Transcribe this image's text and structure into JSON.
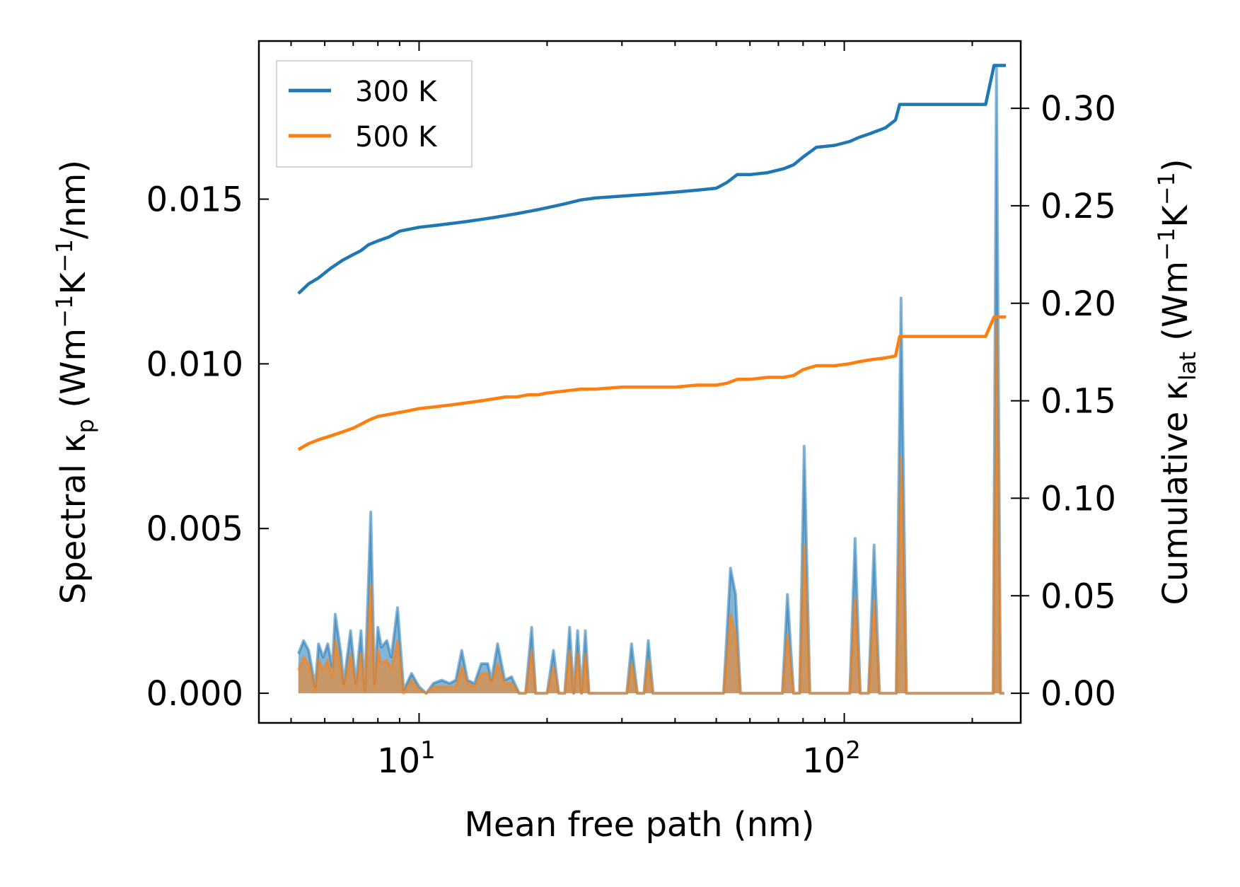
{
  "chart_data": {
    "type": "line",
    "title": "",
    "xlabel": "Mean free path (nm)",
    "ylabel_left": "Spectral κp (Wm−1K−1/nm)",
    "ylabel_right": "Cumulative κlat (Wm−1K−1)",
    "xscale": "log",
    "xlim": [
      4.2,
      260
    ],
    "ylim_left": [
      -0.0009,
      0.0198
    ],
    "ylim_right": [
      -0.0152,
      0.3345
    ],
    "x_ticks": [
      {
        "value": 10,
        "base": "10",
        "exp": "1"
      },
      {
        "value": 100,
        "base": "10",
        "exp": "2"
      }
    ],
    "y_left_ticks": [
      {
        "value": 0.0,
        "label": "0.000"
      },
      {
        "value": 0.005,
        "label": "0.005"
      },
      {
        "value": 0.01,
        "label": "0.010"
      },
      {
        "value": 0.015,
        "label": "0.015"
      }
    ],
    "y_right_ticks": [
      {
        "value": 0.0,
        "label": "0.00"
      },
      {
        "value": 0.05,
        "label": "0.05"
      },
      {
        "value": 0.1,
        "label": "0.10"
      },
      {
        "value": 0.15,
        "label": "0.15"
      },
      {
        "value": 0.2,
        "label": "0.20"
      },
      {
        "value": 0.25,
        "label": "0.25"
      },
      {
        "value": 0.3,
        "label": "0.30"
      }
    ],
    "legend": {
      "location": "top-left",
      "entries": [
        "300 K",
        "500 K"
      ]
    },
    "series": [
      {
        "name": "300 K",
        "color": "#1f77b4",
        "axis": "right",
        "kind": "cumulative",
        "x": [
          5.2,
          5.5,
          5.8,
          6.2,
          6.6,
          7.0,
          7.3,
          7.6,
          8.0,
          8.5,
          9.0,
          9.5,
          10.0,
          11.0,
          12.0,
          13.0,
          14.0,
          15.0,
          16.0,
          17.0,
          18.0,
          19.0,
          20.0,
          22.0,
          24.0,
          26.0,
          30.0,
          35.0,
          40.0,
          45.0,
          50.0,
          53.0,
          56.0,
          60.0,
          66.0,
          72.0,
          76.0,
          80.0,
          86.0,
          95.0,
          103.0,
          108.0,
          115.0,
          125.0,
          132.0,
          135.0,
          150.0,
          180.0,
          215.0,
          225.0,
          240.0
        ],
        "y": [
          0.205,
          0.21,
          0.213,
          0.218,
          0.222,
          0.225,
          0.227,
          0.23,
          0.232,
          0.234,
          0.237,
          0.238,
          0.239,
          0.24,
          0.241,
          0.242,
          0.243,
          0.244,
          0.245,
          0.246,
          0.247,
          0.248,
          0.249,
          0.251,
          0.253,
          0.254,
          0.255,
          0.256,
          0.257,
          0.258,
          0.259,
          0.262,
          0.266,
          0.266,
          0.267,
          0.269,
          0.271,
          0.275,
          0.28,
          0.281,
          0.283,
          0.285,
          0.287,
          0.29,
          0.294,
          0.302,
          0.302,
          0.302,
          0.302,
          0.322,
          0.322
        ]
      },
      {
        "name": "500 K",
        "color": "#ff7f0e",
        "axis": "right",
        "kind": "cumulative",
        "x": [
          5.2,
          5.5,
          5.8,
          6.2,
          6.6,
          7.0,
          7.3,
          7.6,
          8.0,
          8.5,
          9.0,
          9.5,
          10.0,
          11.0,
          12.0,
          13.0,
          14.0,
          15.0,
          16.0,
          17.0,
          18.0,
          19.0,
          20.0,
          22.0,
          24.0,
          26.0,
          30.0,
          35.0,
          40.0,
          45.0,
          50.0,
          53.0,
          56.0,
          60.0,
          66.0,
          72.0,
          76.0,
          80.0,
          86.0,
          95.0,
          103.0,
          108.0,
          115.0,
          125.0,
          132.0,
          135.0,
          150.0,
          180.0,
          215.0,
          225.0,
          240.0
        ],
        "y": [
          0.125,
          0.128,
          0.13,
          0.132,
          0.134,
          0.136,
          0.138,
          0.14,
          0.142,
          0.143,
          0.144,
          0.145,
          0.146,
          0.147,
          0.148,
          0.149,
          0.15,
          0.151,
          0.152,
          0.152,
          0.153,
          0.153,
          0.154,
          0.155,
          0.156,
          0.156,
          0.157,
          0.157,
          0.157,
          0.158,
          0.158,
          0.159,
          0.161,
          0.161,
          0.162,
          0.162,
          0.163,
          0.166,
          0.168,
          0.168,
          0.169,
          0.17,
          0.171,
          0.172,
          0.173,
          0.183,
          0.183,
          0.183,
          0.183,
          0.193,
          0.193
        ]
      },
      {
        "name": "300 K spectral",
        "color": "#1f77b4",
        "axis": "left",
        "kind": "spectral",
        "x": [
          5.2,
          5.35,
          5.5,
          5.7,
          5.8,
          5.95,
          6.1,
          6.25,
          6.35,
          6.55,
          6.65,
          6.9,
          7.1,
          7.3,
          7.45,
          7.7,
          7.85,
          8.0,
          8.15,
          8.4,
          8.6,
          8.9,
          9.2,
          9.6,
          10.0,
          10.4,
          10.8,
          11.3,
          11.8,
          12.2,
          12.6,
          13.0,
          13.5,
          14.0,
          14.5,
          14.8,
          15.3,
          15.9,
          16.5,
          17.2,
          17.8,
          18.4,
          18.8,
          20.0,
          20.7,
          21.3,
          22.0,
          22.6,
          23.1,
          23.6,
          24.1,
          24.6,
          25.1,
          25.6,
          27.0,
          29.0,
          30.8,
          31.6,
          32.6,
          33.8,
          34.6,
          35.5,
          40.0,
          50.0,
          52.0,
          54.0,
          55.5,
          57.0,
          60.0,
          68.0,
          71.5,
          73.5,
          76.0,
          78.5,
          80.5,
          83.0,
          88.0,
          103.0,
          106.0,
          109.0,
          114.0,
          117.5,
          121.0,
          128.0,
          132.5,
          136.0,
          140.0,
          216.0,
          224.0,
          228.0,
          233.0,
          238.0
        ],
        "y": [
          0.0012,
          0.0016,
          0.0013,
          0.0002,
          0.0015,
          0.0011,
          0.0015,
          0.0008,
          0.0024,
          0.0012,
          0.0003,
          0.0019,
          0.0003,
          0.0019,
          0.0001,
          0.0055,
          0.0003,
          0.002,
          0.0014,
          0.0016,
          0.0011,
          0.0026,
          0.0001,
          0.0006,
          0.0002,
          0.0,
          0.0003,
          0.0004,
          0.0003,
          0.0004,
          0.0013,
          0.0004,
          0.0003,
          0.0009,
          0.0009,
          0.0004,
          0.0015,
          0.0004,
          0.0005,
          0.0,
          0.0,
          0.002,
          0.0,
          0.0,
          0.0013,
          0.0,
          0.0,
          0.002,
          0.0,
          0.0019,
          0.0,
          0.0019,
          0.0,
          0.0,
          0.0,
          0.0,
          0.0,
          0.0015,
          0.0,
          0.0,
          0.0016,
          0.0,
          0.0,
          0.0,
          0.0,
          0.0038,
          0.003,
          0.0,
          0.0,
          0.0,
          0.0,
          0.003,
          0.0,
          0.0,
          0.0075,
          0.0,
          0.0,
          0.0,
          0.0047,
          0.0,
          0.0,
          0.0045,
          0.0,
          0.0,
          0.0,
          0.012,
          0.0,
          0.0,
          0.0,
          0.019,
          0.0,
          0.0
        ]
      },
      {
        "name": "500 K spectral",
        "color": "#ff7f0e",
        "axis": "left",
        "kind": "spectral",
        "x": [
          5.2,
          5.35,
          5.5,
          5.7,
          5.8,
          5.95,
          6.1,
          6.25,
          6.35,
          6.55,
          6.65,
          6.9,
          7.1,
          7.3,
          7.45,
          7.7,
          7.85,
          8.0,
          8.15,
          8.4,
          8.6,
          8.9,
          9.2,
          9.6,
          10.0,
          10.4,
          10.8,
          11.3,
          11.8,
          12.2,
          12.6,
          13.0,
          13.5,
          14.0,
          14.5,
          14.8,
          15.3,
          15.9,
          16.5,
          17.2,
          17.8,
          18.4,
          18.8,
          20.0,
          20.7,
          21.3,
          22.0,
          22.6,
          23.1,
          23.6,
          24.1,
          24.6,
          25.1,
          25.6,
          27.0,
          29.0,
          30.8,
          31.6,
          32.6,
          33.8,
          34.6,
          35.5,
          40.0,
          50.0,
          52.0,
          54.0,
          55.5,
          57.0,
          60.0,
          68.0,
          71.5,
          73.5,
          76.0,
          78.5,
          80.5,
          83.0,
          88.0,
          103.0,
          106.0,
          109.0,
          114.0,
          117.5,
          121.0,
          128.0,
          132.5,
          136.0,
          140.0,
          216.0,
          224.0,
          228.0,
          233.0,
          238.0
        ],
        "y": [
          0.0007,
          0.0011,
          0.0009,
          0.0001,
          0.001,
          0.0007,
          0.001,
          0.0005,
          0.0016,
          0.0008,
          0.0002,
          0.0012,
          0.0002,
          0.0012,
          0.0001,
          0.0033,
          0.0002,
          0.0013,
          0.0009,
          0.001,
          0.0007,
          0.0016,
          0.0,
          0.0004,
          0.0001,
          0.0,
          0.0002,
          0.0002,
          0.0002,
          0.0002,
          0.0008,
          0.0003,
          0.0002,
          0.0006,
          0.0006,
          0.0003,
          0.0009,
          0.0003,
          0.0003,
          0.0,
          0.0,
          0.0013,
          0.0,
          0.0,
          0.0008,
          0.0,
          0.0,
          0.0013,
          0.0,
          0.0012,
          0.0,
          0.0012,
          0.0,
          0.0,
          0.0,
          0.0,
          0.0,
          0.0009,
          0.0,
          0.0,
          0.001,
          0.0,
          0.0,
          0.0,
          0.0,
          0.0024,
          0.0018,
          0.0,
          0.0,
          0.0,
          0.0,
          0.0018,
          0.0,
          0.0,
          0.0045,
          0.0,
          0.0,
          0.0,
          0.0029,
          0.0,
          0.0,
          0.0028,
          0.0,
          0.0,
          0.0,
          0.0072,
          0.0,
          0.0,
          0.0,
          0.0113,
          0.0,
          0.0
        ]
      }
    ]
  }
}
